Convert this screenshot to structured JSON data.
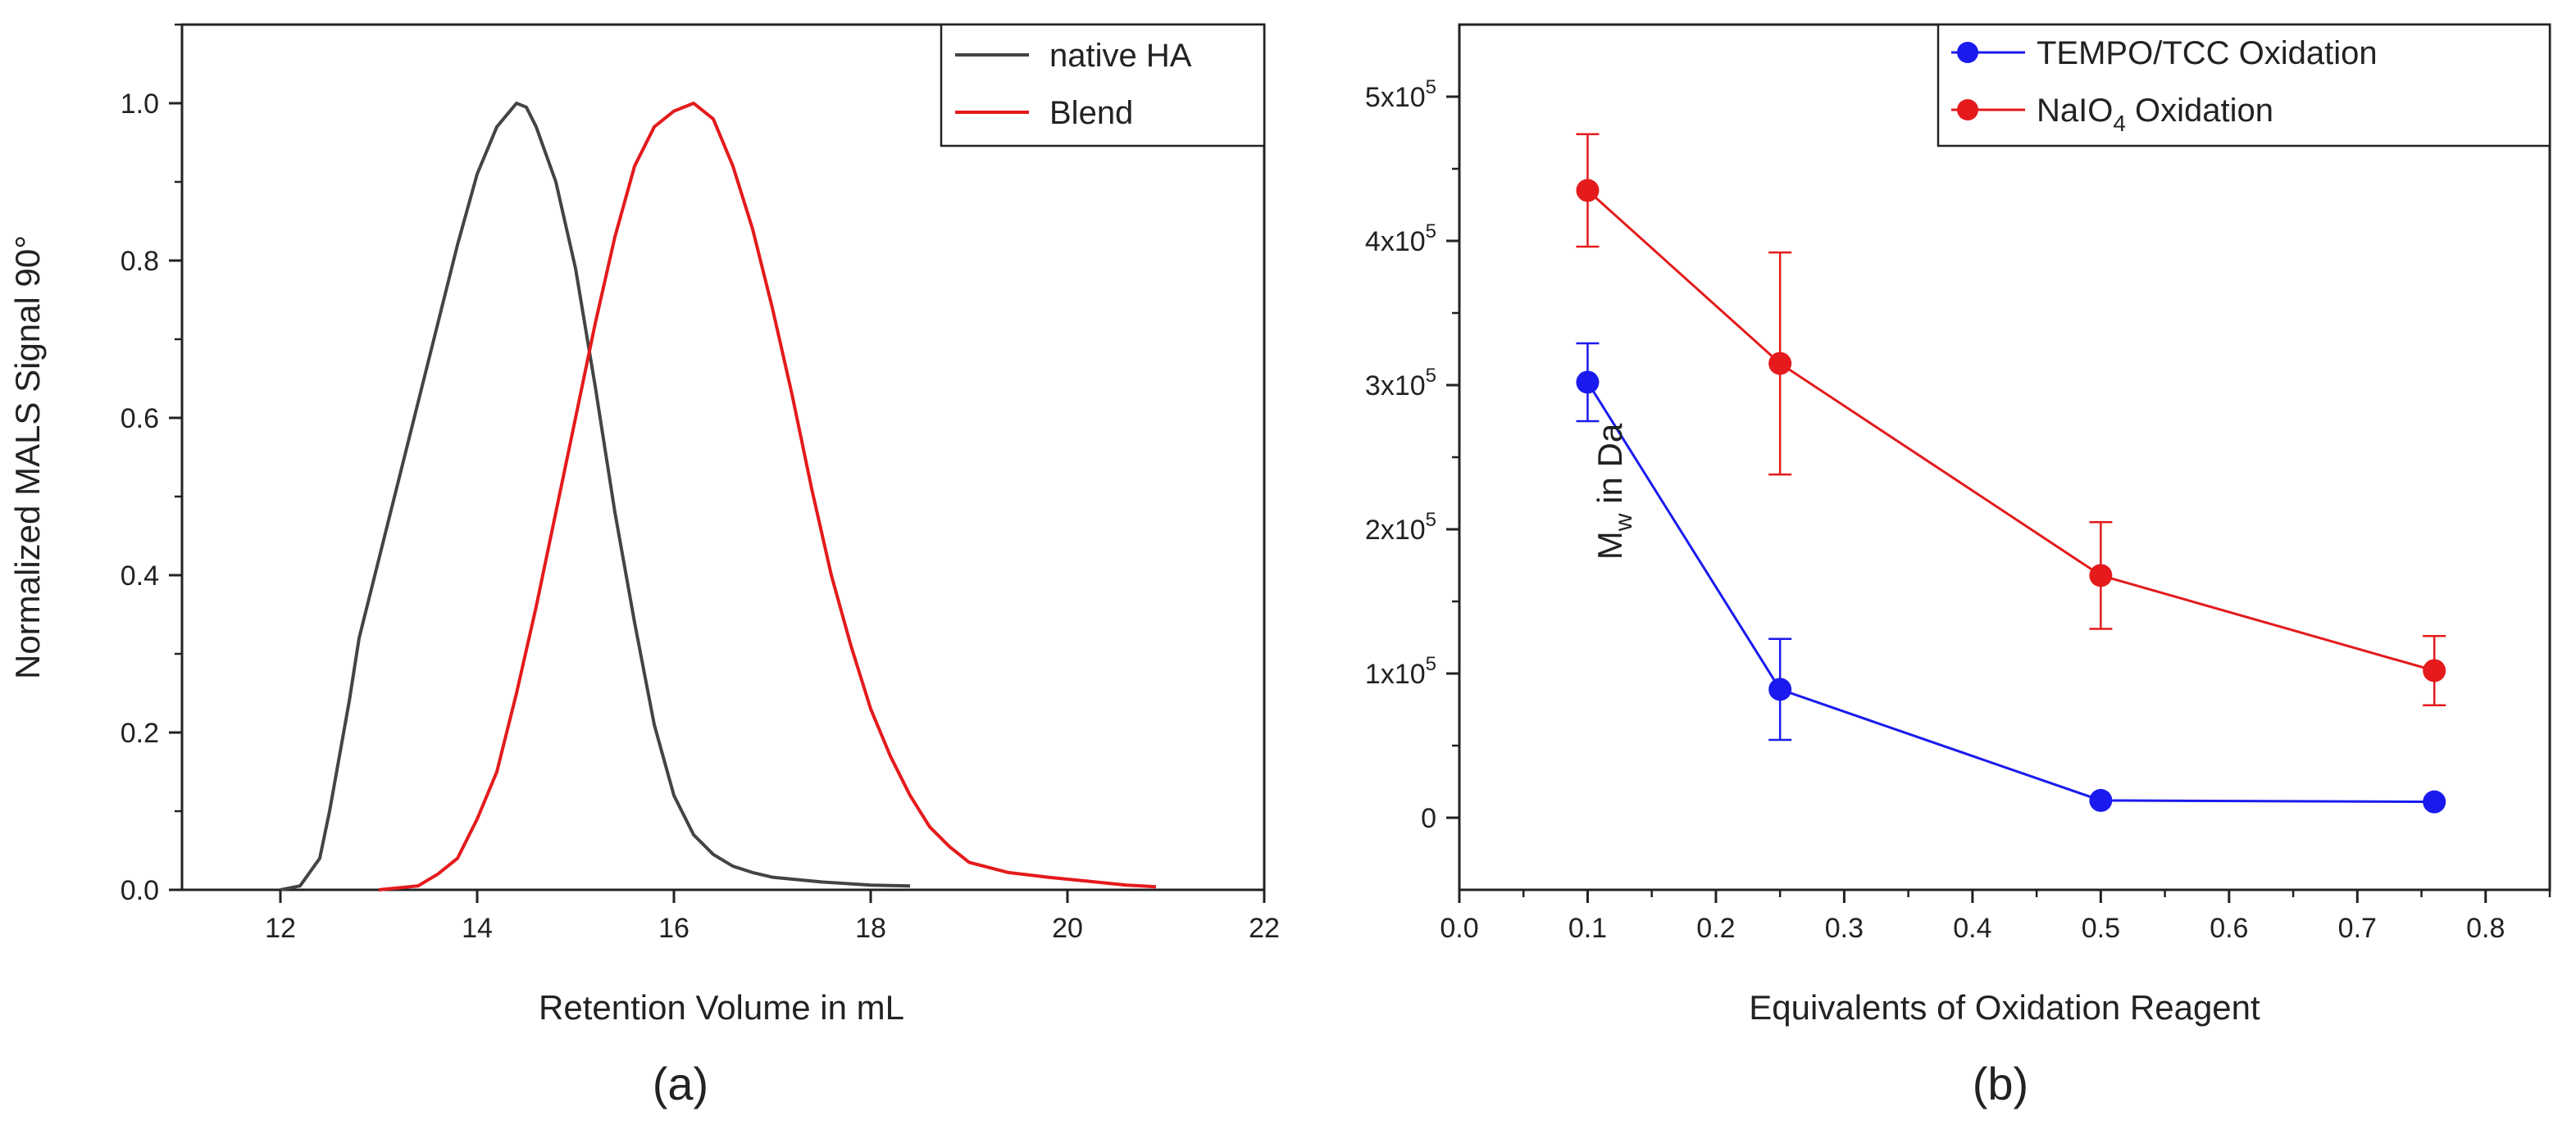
{
  "chart_data": [
    {
      "panel": "(a)",
      "type": "line",
      "title": "",
      "xlabel": "Retention Volume in mL",
      "ylabel": "Normalized MALS Signal 90°",
      "xlim": [
        11,
        22
      ],
      "ylim": [
        0,
        1.1
      ],
      "xticks": [
        12,
        14,
        16,
        18,
        20,
        22
      ],
      "yticks": [
        0.0,
        0.2,
        0.4,
        0.6,
        0.8,
        1.0
      ],
      "xtick_labels": [
        "12",
        "14",
        "16",
        "18",
        "20",
        "22"
      ],
      "ytick_labels": [
        "0.0",
        "0.2",
        "0.4",
        "0.6",
        "0.8",
        "1.0"
      ],
      "legend_position": "top-right",
      "series": [
        {
          "name": "native HA",
          "color": "#444444",
          "x": [
            12.0,
            12.2,
            12.4,
            12.5,
            12.6,
            12.7,
            12.8,
            13.0,
            13.2,
            13.4,
            13.6,
            13.8,
            14.0,
            14.2,
            14.4,
            14.5,
            14.6,
            14.8,
            15.0,
            15.2,
            15.4,
            15.6,
            15.8,
            16.0,
            16.2,
            16.4,
            16.6,
            16.8,
            17.0,
            17.5,
            18.0,
            18.4
          ],
          "y": [
            0.0,
            0.005,
            0.04,
            0.1,
            0.17,
            0.24,
            0.32,
            0.42,
            0.52,
            0.62,
            0.72,
            0.82,
            0.91,
            0.97,
            1.0,
            0.995,
            0.97,
            0.9,
            0.79,
            0.64,
            0.48,
            0.34,
            0.21,
            0.12,
            0.07,
            0.045,
            0.03,
            0.022,
            0.016,
            0.01,
            0.006,
            0.005
          ]
        },
        {
          "name": "Blend",
          "color": "#e41a1c",
          "x": [
            13.0,
            13.4,
            13.6,
            13.8,
            14.0,
            14.2,
            14.4,
            14.6,
            14.8,
            15.0,
            15.2,
            15.4,
            15.6,
            15.8,
            16.0,
            16.2,
            16.4,
            16.6,
            16.8,
            17.0,
            17.2,
            17.4,
            17.6,
            17.8,
            18.0,
            18.2,
            18.4,
            18.6,
            18.8,
            19.0,
            19.4,
            19.8,
            20.2,
            20.6,
            20.9
          ],
          "y": [
            0.0,
            0.005,
            0.02,
            0.04,
            0.09,
            0.15,
            0.25,
            0.36,
            0.48,
            0.6,
            0.72,
            0.83,
            0.92,
            0.97,
            0.99,
            1.0,
            0.98,
            0.92,
            0.84,
            0.74,
            0.63,
            0.51,
            0.4,
            0.31,
            0.23,
            0.17,
            0.12,
            0.08,
            0.055,
            0.035,
            0.022,
            0.016,
            0.011,
            0.006,
            0.004
          ]
        }
      ]
    },
    {
      "panel": "(b)",
      "type": "line",
      "title": "",
      "xlabel": "Equivalents of Oxidation Reagent",
      "ylabel_main": "M",
      "ylabel_sub": "w",
      "ylabel_rest": " in Da",
      "xlim": [
        0.0,
        0.85
      ],
      "ylim": [
        -50000,
        550000
      ],
      "xticks": [
        0.0,
        0.1,
        0.2,
        0.3,
        0.4,
        0.5,
        0.6,
        0.7,
        0.8
      ],
      "xtick_labels": [
        "0.0",
        "0.1",
        "0.2",
        "0.3",
        "0.4",
        "0.5",
        "0.6",
        "0.7",
        "0.8"
      ],
      "yticks": [
        0,
        100000,
        200000,
        300000,
        400000,
        500000
      ],
      "ytick_labels": [
        {
          "base": "0",
          "exp": ""
        },
        {
          "base": "1x10",
          "exp": "5"
        },
        {
          "base": "2x10",
          "exp": "5"
        },
        {
          "base": "3x10",
          "exp": "5"
        },
        {
          "base": "4x10",
          "exp": "5"
        },
        {
          "base": "5x10",
          "exp": "5"
        }
      ],
      "legend_position": "top-right",
      "series": [
        {
          "name": "TEMPO/TCC Oxidation",
          "color": "#1a1aee",
          "x": [
            0.1,
            0.25,
            0.5,
            0.76
          ],
          "y": [
            302000,
            89000,
            12000,
            11000
          ],
          "err": [
            27000,
            35000,
            0,
            0
          ]
        },
        {
          "name_main": "NaIO",
          "name_sub": "4",
          "name_rest": " Oxidation",
          "color": "#e41a1c",
          "x": [
            0.1,
            0.25,
            0.5,
            0.76
          ],
          "y": [
            435000,
            315000,
            168000,
            102000
          ],
          "err": [
            39000,
            77000,
            37000,
            24000
          ]
        }
      ]
    }
  ]
}
